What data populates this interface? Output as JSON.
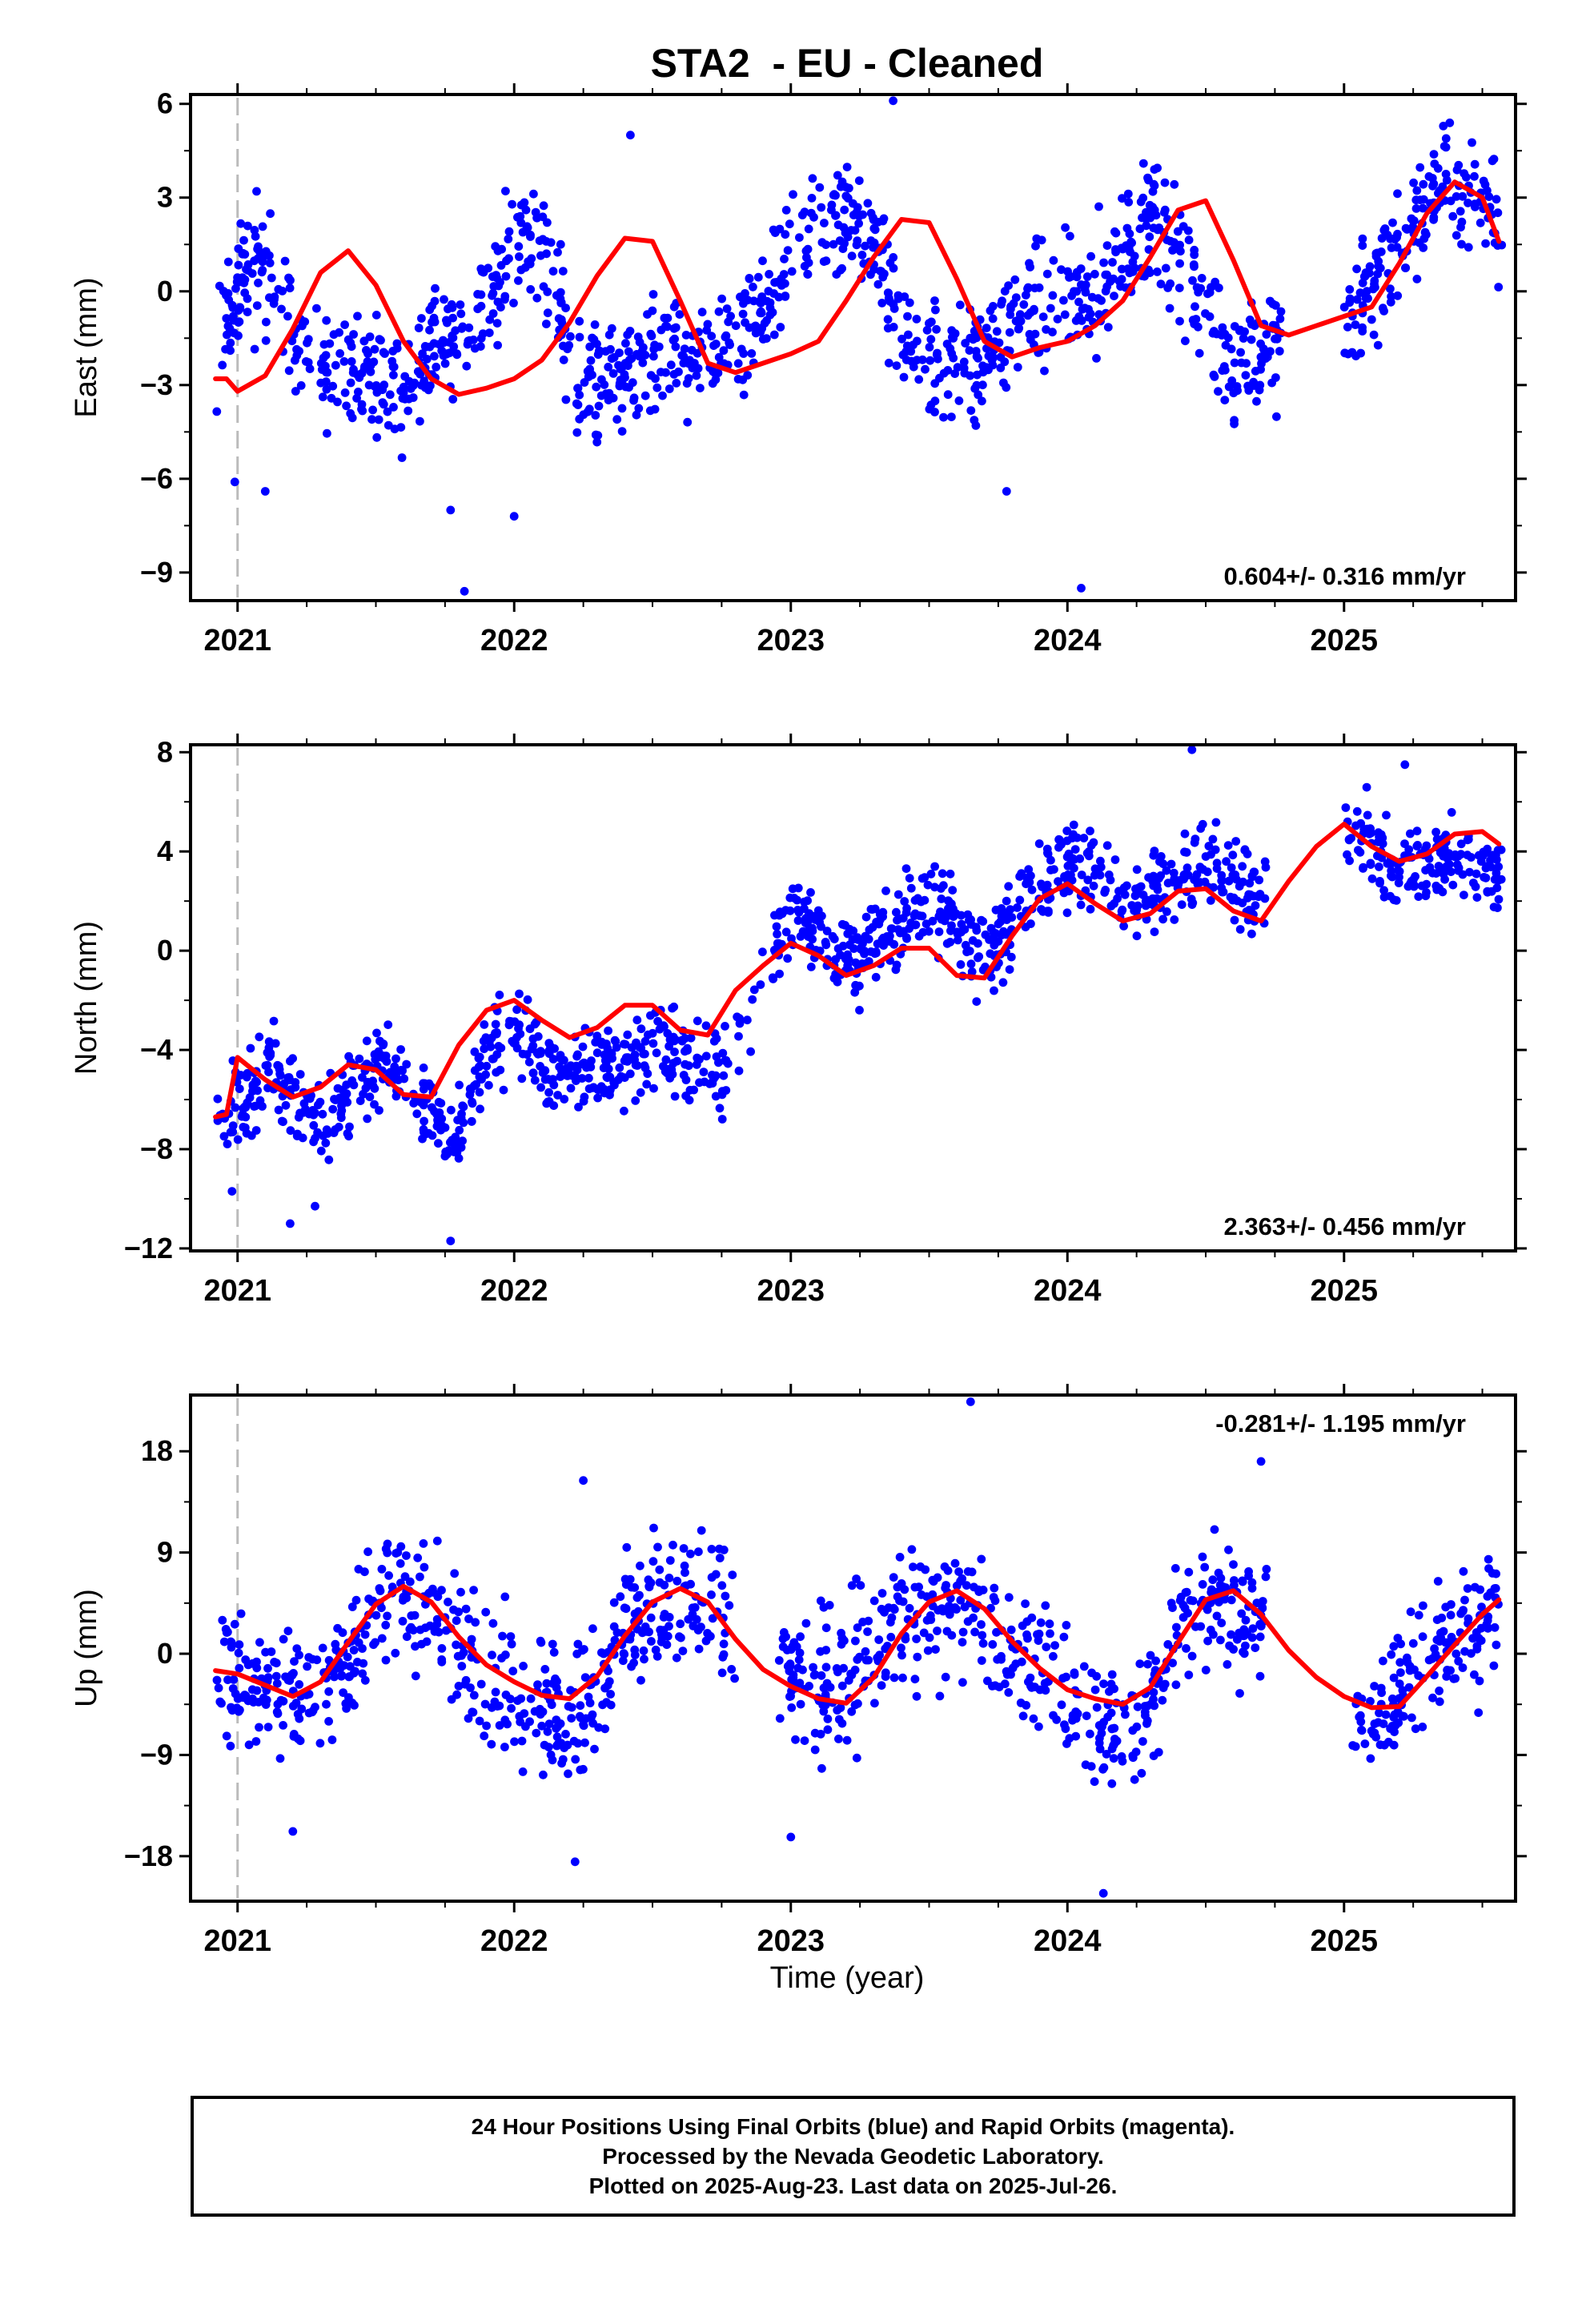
{
  "title": "STA2  - EU - Cleaned",
  "xlabel": "Time (year)",
  "colors": {
    "points": "#0000ff",
    "model": "#ff0000",
    "ref_line": "#bbbbbb",
    "frame": "#000000"
  },
  "chart_data": [
    {
      "type": "scatter",
      "name": "east",
      "ylabel": "East (mm)",
      "ylim": [
        -9.9,
        6.3
      ],
      "yticks": [
        6,
        3,
        0,
        -3,
        -6,
        -9
      ],
      "ytick_labels": [
        "6",
        "3",
        "0",
        "−3",
        "−6",
        "−9"
      ],
      "xlim": [
        2020.83,
        2025.62
      ],
      "xticks": [
        2021,
        2022,
        2023,
        2024,
        2025
      ],
      "xtick_labels": [
        "2021",
        "2022",
        "2023",
        "2024",
        "2025"
      ],
      "ref_line_x": 2021.0,
      "rate_label": "0.604+/- 0.316 mm/yr",
      "rate_position": "bottom-right",
      "model": {
        "x": [
          2020.92,
          2020.96,
          2021.0,
          2021.1,
          2021.2,
          2021.3,
          2021.4,
          2021.5,
          2021.6,
          2021.7,
          2021.8,
          2021.9,
          2022.0,
          2022.1,
          2022.2,
          2022.3,
          2022.4,
          2022.5,
          2022.6,
          2022.7,
          2022.8,
          2022.9,
          2023.0,
          2023.1,
          2023.2,
          2023.3,
          2023.4,
          2023.5,
          2023.6,
          2023.7,
          2023.8,
          2023.9,
          2024.0,
          2024.1,
          2024.2,
          2024.3,
          2024.4,
          2024.5,
          2024.6,
          2024.7,
          2024.8,
          2024.9,
          2025.0,
          2025.1,
          2025.2,
          2025.3,
          2025.4,
          2025.5,
          2025.56
        ],
        "y": [
          -2.8,
          -2.8,
          -3.2,
          -2.7,
          -1.2,
          0.6,
          1.3,
          0.2,
          -1.6,
          -2.8,
          -3.3,
          -3.1,
          -2.8,
          -2.2,
          -1.0,
          0.5,
          1.7,
          1.6,
          -0.3,
          -2.3,
          -2.6,
          -2.3,
          -2.0,
          -1.6,
          -0.3,
          1.1,
          2.3,
          2.2,
          0.4,
          -1.6,
          -2.1,
          -1.8,
          -1.6,
          -1.1,
          -0.3,
          1.1,
          2.6,
          2.9,
          1.0,
          -1.1,
          -1.4,
          -1.1,
          -0.8,
          -0.5,
          0.9,
          2.5,
          3.5,
          3.0,
          1.6
        ]
      },
      "points": {
        "base": [
          -2.6,
          0.6,
          0.6,
          -1.7,
          -2.5,
          -2.6,
          -2.7,
          -3.4,
          -1.9,
          -1.2,
          -0.4,
          1.8,
          1.5,
          -2.3,
          -3.3,
          -2.6,
          -2.1,
          -1.9,
          -1.9,
          -1.8,
          -0.6,
          1.1,
          2.2,
          2.6,
          1.9,
          -1.1,
          -2.3,
          -2.2,
          -2.0,
          -1.2,
          -0.5,
          -0.2,
          0.2,
          0.8,
          2.4,
          1.5,
          -0.8,
          -2.2,
          -2.1,
          -1.8,
          -1.4,
          -0.7,
          0.0,
          1.1,
          2.4,
          3.7,
          3.2,
          1.8
        ],
        "spread": 1.3,
        "seed": 11,
        "segments": [
          [
            2020.92,
            2022.98,
            1.0
          ],
          [
            2022.98,
            2023.12,
            0.55
          ],
          [
            2023.12,
            2024.78,
            1.0
          ],
          [
            2024.78,
            2025.0,
            0.0
          ],
          [
            2025.0,
            2025.57,
            1.0
          ]
        ],
        "density": 300,
        "outliers": [
          [
            2021.82,
            -9.6
          ],
          [
            2022.0,
            -7.2
          ],
          [
            2024.05,
            -9.5
          ],
          [
            2023.37,
            6.1
          ],
          [
            2022.42,
            5.0
          ],
          [
            2020.99,
            -6.1
          ],
          [
            2021.1,
            -6.4
          ],
          [
            2023.78,
            -6.4
          ],
          [
            2021.77,
            -7.0
          ]
        ]
      }
    },
    {
      "type": "scatter",
      "name": "north",
      "ylabel": "North (mm)",
      "ylim": [
        -12.1,
        8.3
      ],
      "yticks": [
        8,
        4,
        0,
        -4,
        -8,
        -12
      ],
      "ytick_labels": [
        "8",
        "4",
        "0",
        "−4",
        "−8",
        "−12"
      ],
      "xlim": [
        2020.83,
        2025.62
      ],
      "xticks": [
        2021,
        2022,
        2023,
        2024,
        2025
      ],
      "xtick_labels": [
        "2021",
        "2022",
        "2023",
        "2024",
        "2025"
      ],
      "ref_line_x": 2021.0,
      "rate_label": "2.363+/- 0.456 mm/yr",
      "rate_position": "bottom-right",
      "model": {
        "x": [
          2020.92,
          2020.96,
          2021.0,
          2021.1,
          2021.2,
          2021.3,
          2021.4,
          2021.5,
          2021.6,
          2021.7,
          2021.8,
          2021.9,
          2022.0,
          2022.1,
          2022.2,
          2022.3,
          2022.4,
          2022.5,
          2022.6,
          2022.7,
          2022.8,
          2022.9,
          2023.0,
          2023.1,
          2023.2,
          2023.3,
          2023.4,
          2023.5,
          2023.6,
          2023.7,
          2023.8,
          2023.9,
          2024.0,
          2024.1,
          2024.2,
          2024.3,
          2024.4,
          2024.5,
          2024.6,
          2024.7,
          2024.8,
          2024.9,
          2025.0,
          2025.1,
          2025.2,
          2025.3,
          2025.4,
          2025.5,
          2025.56
        ],
        "y": [
          -6.7,
          -6.6,
          -4.3,
          -5.2,
          -5.9,
          -5.5,
          -4.6,
          -4.8,
          -5.8,
          -5.9,
          -3.8,
          -2.4,
          -2.0,
          -2.8,
          -3.5,
          -3.1,
          -2.2,
          -2.2,
          -3.2,
          -3.4,
          -1.6,
          -0.6,
          0.3,
          -0.2,
          -1.0,
          -0.6,
          0.1,
          0.1,
          -1.0,
          -1.1,
          0.6,
          2.1,
          2.7,
          1.9,
          1.2,
          1.5,
          2.4,
          2.5,
          1.6,
          1.2,
          2.8,
          4.2,
          5.1,
          4.2,
          3.6,
          3.9,
          4.7,
          4.8,
          4.3
        ]
      },
      "points": {
        "base": [
          -6.8,
          -6.5,
          -4.3,
          -5.9,
          -6.8,
          -5.9,
          -4.6,
          -5.0,
          -6.6,
          -7.7,
          -4.5,
          -3.0,
          -4.0,
          -5.4,
          -4.9,
          -4.5,
          -4.0,
          -3.9,
          -4.6,
          -4.9,
          -2.0,
          0.6,
          1.2,
          0.3,
          -0.5,
          0.8,
          1.6,
          1.6,
          0.4,
          -0.3,
          1.8,
          3.0,
          3.8,
          3.0,
          2.1,
          2.5,
          3.2,
          3.6,
          2.7,
          2.4,
          3.6,
          4.6,
          5.0,
          4.3,
          3.4,
          3.5,
          3.8,
          3.4,
          3.0
        ],
        "spread": 1.2,
        "seed": 23,
        "segments": [
          [
            2020.92,
            2022.78,
            1.0
          ],
          [
            2022.78,
            2022.93,
            0.25
          ],
          [
            2022.93,
            2024.72,
            1.0
          ],
          [
            2024.72,
            2025.0,
            0.0
          ],
          [
            2025.0,
            2025.57,
            1.0
          ]
        ],
        "density": 300,
        "outliers": [
          [
            2021.77,
            -11.7
          ],
          [
            2021.19,
            -11.0
          ],
          [
            2021.28,
            -10.3
          ],
          [
            2024.45,
            8.1
          ],
          [
            2025.22,
            7.5
          ],
          [
            2020.98,
            -9.7
          ]
        ]
      }
    },
    {
      "type": "scatter",
      "name": "up",
      "ylabel": "Up (mm)",
      "ylim": [
        -22.0,
        23.0
      ],
      "yticks": [
        18,
        9,
        0,
        -9,
        -18
      ],
      "ytick_labels": [
        "18",
        "9",
        "0",
        "−9",
        "−18"
      ],
      "xlim": [
        2020.83,
        2025.62
      ],
      "xticks": [
        2021,
        2022,
        2023,
        2024,
        2025
      ],
      "xtick_labels": [
        "2021",
        "2022",
        "2023",
        "2024",
        "2025"
      ],
      "ref_line_x": 2021.0,
      "rate_label": "-0.281+/- 1.195 mm/yr",
      "rate_position": "top-right",
      "model": {
        "x": [
          2020.92,
          2021.0,
          2021.1,
          2021.2,
          2021.3,
          2021.4,
          2021.5,
          2021.6,
          2021.7,
          2021.8,
          2021.9,
          2022.0,
          2022.1,
          2022.2,
          2022.3,
          2022.4,
          2022.5,
          2022.6,
          2022.7,
          2022.8,
          2022.9,
          2023.0,
          2023.1,
          2023.2,
          2023.3,
          2023.4,
          2023.5,
          2023.6,
          2023.7,
          2023.8,
          2023.9,
          2024.0,
          2024.1,
          2024.2,
          2024.3,
          2024.4,
          2024.5,
          2024.6,
          2024.7,
          2024.8,
          2024.9,
          2025.0,
          2025.1,
          2025.2,
          2025.3,
          2025.4,
          2025.5,
          2025.56
        ],
        "y": [
          -1.5,
          -1.8,
          -2.8,
          -3.8,
          -2.5,
          1.0,
          4.4,
          6.0,
          4.6,
          1.5,
          -1.0,
          -2.5,
          -3.7,
          -4.0,
          -2.0,
          1.6,
          4.6,
          5.8,
          4.6,
          1.3,
          -1.4,
          -2.9,
          -4.0,
          -4.4,
          -2.1,
          1.8,
          4.6,
          5.6,
          4.0,
          1.1,
          -1.3,
          -3.2,
          -4.0,
          -4.5,
          -3.0,
          1.0,
          4.8,
          5.6,
          3.5,
          0.3,
          -2.1,
          -3.8,
          -4.8,
          -4.7,
          -2.0,
          0.8,
          3.5,
          4.8
        ]
      },
      "points": {
        "base": [
          -1.5,
          -1.8,
          -2.8,
          -5.0,
          -3.5,
          0.5,
          3.8,
          5.0,
          3.8,
          0.0,
          -2.5,
          -3.5,
          -4.8,
          -5.5,
          -3.5,
          1.8,
          4.5,
          6.5,
          5.5,
          1.8,
          -0.5,
          -1.5,
          -2.5,
          -2.5,
          1.0,
          2.5,
          3.5,
          4.5,
          3.0,
          1.0,
          -1.5,
          -4.0,
          -5.5,
          -6.5,
          -5.0,
          2.5,
          4.5,
          5.5,
          3.5,
          0.3,
          -2.1,
          -3.8,
          -6.5,
          -4.5,
          -2.0,
          0.5,
          2.5,
          4.5
        ],
        "spread": 4.2,
        "seed": 37,
        "segments": [
          [
            2020.92,
            2022.8,
            1.0
          ],
          [
            2022.8,
            2022.95,
            0.0
          ],
          [
            2022.95,
            2024.72,
            1.0
          ],
          [
            2024.72,
            2025.03,
            0.0
          ],
          [
            2025.03,
            2025.57,
            1.0
          ]
        ],
        "density": 280,
        "outliers": [
          [
            2024.13,
            -21.3
          ],
          [
            2023.65,
            22.4
          ],
          [
            2022.22,
            -18.5
          ],
          [
            2023.0,
            -16.3
          ],
          [
            2022.25,
            15.4
          ],
          [
            2024.7,
            17.1
          ],
          [
            2021.2,
            -15.8
          ]
        ]
      }
    }
  ],
  "footer": {
    "line1": "24 Hour Positions Using Final Orbits (blue) and Rapid Orbits (magenta).",
    "line2": "Processed by the Nevada Geodetic Laboratory.",
    "line3": "Plotted on 2025-Aug-23. Last data on 2025-Jul-26."
  }
}
